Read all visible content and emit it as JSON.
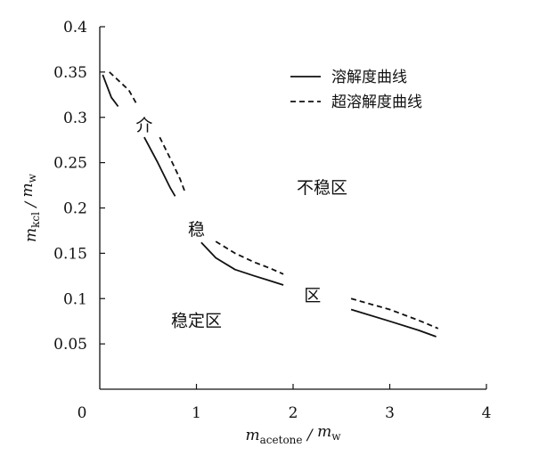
{
  "chart_data": {
    "type": "line",
    "xlabel": {
      "main": "m",
      "sub": "acetone",
      "sep": " / ",
      "main2": "m",
      "sub2": "w"
    },
    "ylabel": {
      "main": "m",
      "sub": "kcl",
      "sep": " / ",
      "main2": "m",
      "sub2": "w"
    },
    "xlim": [
      0,
      4
    ],
    "ylim": [
      0,
      0.4
    ],
    "x_ticks": [
      0,
      1,
      2,
      3,
      4
    ],
    "x_tick_labels": [
      "0",
      "1",
      "2",
      "3",
      "4"
    ],
    "y_ticks": [
      0.05,
      0.1,
      0.15,
      0.2,
      0.25,
      0.3,
      0.35,
      0.4
    ],
    "y_tick_labels": [
      "0.05",
      "0.1",
      "0.15",
      "0.2",
      "0.25",
      "0.3",
      "0.35",
      "0.4"
    ],
    "grid": false,
    "legend_position": "top-right",
    "series": [
      {
        "name": "溶解度曲线",
        "style": "solid",
        "segments": [
          [
            [
              0.03,
              0.347
            ],
            [
              0.12,
              0.322
            ],
            [
              0.19,
              0.312
            ]
          ],
          [
            [
              0.46,
              0.278
            ],
            [
              0.6,
              0.25
            ],
            [
              0.73,
              0.222
            ],
            [
              0.78,
              0.213
            ]
          ],
          [
            [
              1.05,
              0.162
            ],
            [
              1.2,
              0.145
            ],
            [
              1.4,
              0.132
            ],
            [
              1.6,
              0.125
            ],
            [
              1.75,
              0.12
            ],
            [
              1.9,
              0.115
            ]
          ],
          [
            [
              2.6,
              0.088
            ],
            [
              3.0,
              0.075
            ],
            [
              3.3,
              0.065
            ],
            [
              3.48,
              0.058
            ]
          ]
        ]
      },
      {
        "name": "超溶解度曲线",
        "style": "dashed",
        "segments": [
          [
            [
              0.1,
              0.35
            ],
            [
              0.3,
              0.33
            ],
            [
              0.38,
              0.315
            ]
          ],
          [
            [
              0.62,
              0.278
            ],
            [
              0.75,
              0.25
            ],
            [
              0.83,
              0.232
            ],
            [
              0.88,
              0.218
            ]
          ],
          [
            [
              1.2,
              0.163
            ],
            [
              1.4,
              0.15
            ],
            [
              1.6,
              0.14
            ],
            [
              1.75,
              0.134
            ],
            [
              1.9,
              0.127
            ]
          ],
          [
            [
              2.6,
              0.1
            ],
            [
              3.0,
              0.088
            ],
            [
              3.3,
              0.076
            ],
            [
              3.5,
              0.067
            ]
          ]
        ]
      }
    ],
    "annotations": [
      {
        "text": "介",
        "x": 0.46,
        "y": 0.292
      },
      {
        "text": "稳",
        "x": 1.0,
        "y": 0.177
      },
      {
        "text": "区",
        "x": 2.2,
        "y": 0.104
      },
      {
        "text": "不稳区",
        "x": 2.3,
        "y": 0.223
      },
      {
        "text": "稳定区",
        "x": 1.0,
        "y": 0.076
      }
    ]
  }
}
